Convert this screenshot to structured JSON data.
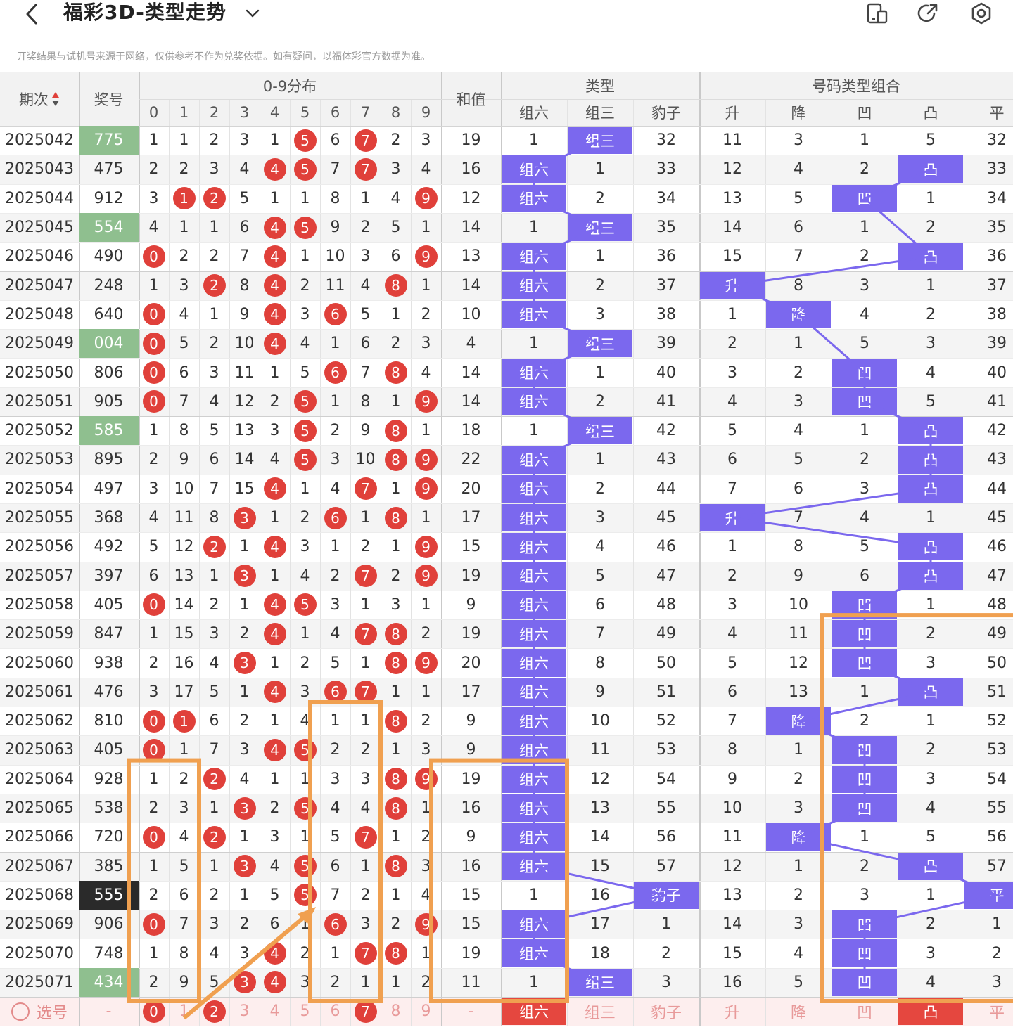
{
  "app": {
    "title": "福彩3D-类型走势",
    "notice": "开奖结果与试机号来源于网络，仅供参考不作为兑奖依据。如有疑问，以福体彩官方数据为准。",
    "icons": [
      "back-icon",
      "chevron-down-icon",
      "device-icon",
      "share-icon",
      "settings-icon"
    ]
  },
  "header": {
    "period": "期次",
    "number": "奖号",
    "dist": "0-9分布",
    "digits": [
      "0",
      "1",
      "2",
      "3",
      "4",
      "5",
      "6",
      "7",
      "8",
      "9"
    ],
    "sum": "和值",
    "type": "类型",
    "type_cols": [
      "组六",
      "组三",
      "豹子"
    ],
    "combo": "号码类型组合",
    "combo_cols": [
      "升",
      "降",
      "凹",
      "凸",
      "平"
    ]
  },
  "colors": {
    "accent": "#7b68ee",
    "ball": "#e0403a",
    "highlight": "#f0a050",
    "win_group3": "#8fbf8f",
    "win_leopard": "#2a2a2a",
    "select_row": "#fdeeee"
  },
  "rows": [
    {
      "p": "2025042",
      "n": "775",
      "nt": "g3",
      "d": [
        "1",
        "1",
        "2",
        "3",
        "1",
        "5",
        "6",
        "7",
        "2",
        "3"
      ],
      "s": "19",
      "t": [
        "1",
        "组三",
        "32"
      ],
      "c": [
        "11",
        "3",
        "1",
        "5",
        "32"
      ]
    },
    {
      "p": "2025043",
      "n": "475",
      "nt": "g6",
      "d": [
        "2",
        "2",
        "3",
        "4",
        "4",
        "5",
        "7",
        "7",
        "3",
        "4"
      ],
      "s": "16",
      "t": [
        "组六",
        "1",
        "33"
      ],
      "c": [
        "12",
        "4",
        "2",
        "凸",
        "33"
      ]
    },
    {
      "p": "2025044",
      "n": "912",
      "nt": "g6",
      "d": [
        "3",
        "1",
        "2",
        "5",
        "1",
        "1",
        "8",
        "1",
        "4",
        "9"
      ],
      "s": "12",
      "t": [
        "组六",
        "2",
        "34"
      ],
      "c": [
        "13",
        "5",
        "凹",
        "1",
        "34"
      ]
    },
    {
      "p": "2025045",
      "n": "554",
      "nt": "g3",
      "d": [
        "4",
        "1",
        "1",
        "6",
        "4",
        "5",
        "9",
        "2",
        "5",
        "1"
      ],
      "s": "14",
      "t": [
        "1",
        "组三",
        "35"
      ],
      "c": [
        "14",
        "6",
        "1",
        "2",
        "35"
      ]
    },
    {
      "p": "2025046",
      "n": "490",
      "nt": "g6",
      "d": [
        "0",
        "2",
        "2",
        "7",
        "4",
        "1",
        "10",
        "3",
        "6",
        "9"
      ],
      "s": "13",
      "t": [
        "组六",
        "1",
        "36"
      ],
      "c": [
        "15",
        "7",
        "2",
        "凸",
        "36"
      ]
    },
    {
      "p": "2025047",
      "n": "248",
      "nt": "g6",
      "d": [
        "1",
        "3",
        "2",
        "8",
        "4",
        "2",
        "11",
        "4",
        "8",
        "1"
      ],
      "s": "14",
      "t": [
        "组六",
        "2",
        "37"
      ],
      "c": [
        "升",
        "8",
        "3",
        "1",
        "37"
      ]
    },
    {
      "p": "2025048",
      "n": "640",
      "nt": "g6",
      "d": [
        "0",
        "4",
        "1",
        "9",
        "4",
        "3",
        "6",
        "5",
        "1",
        "2"
      ],
      "s": "10",
      "t": [
        "组六",
        "3",
        "38"
      ],
      "c": [
        "1",
        "降",
        "4",
        "2",
        "38"
      ]
    },
    {
      "p": "2025049",
      "n": "004",
      "nt": "g3",
      "d": [
        "0",
        "5",
        "2",
        "10",
        "4",
        "4",
        "1",
        "6",
        "2",
        "3"
      ],
      "s": "4",
      "t": [
        "1",
        "组三",
        "39"
      ],
      "c": [
        "2",
        "1",
        "5",
        "3",
        "39"
      ]
    },
    {
      "p": "2025050",
      "n": "806",
      "nt": "g6",
      "d": [
        "0",
        "6",
        "3",
        "11",
        "1",
        "5",
        "6",
        "7",
        "8",
        "4"
      ],
      "s": "14",
      "t": [
        "组六",
        "1",
        "40"
      ],
      "c": [
        "3",
        "2",
        "凹",
        "4",
        "40"
      ]
    },
    {
      "p": "2025051",
      "n": "905",
      "nt": "g6",
      "d": [
        "0",
        "7",
        "4",
        "12",
        "2",
        "5",
        "1",
        "8",
        "1",
        "9"
      ],
      "s": "14",
      "t": [
        "组六",
        "2",
        "41"
      ],
      "c": [
        "4",
        "3",
        "凹",
        "5",
        "41"
      ]
    },
    {
      "p": "2025052",
      "n": "585",
      "nt": "g3",
      "d": [
        "1",
        "8",
        "5",
        "13",
        "3",
        "5",
        "2",
        "9",
        "8",
        "1"
      ],
      "s": "18",
      "t": [
        "1",
        "组三",
        "42"
      ],
      "c": [
        "5",
        "4",
        "1",
        "凸",
        "42"
      ]
    },
    {
      "p": "2025053",
      "n": "895",
      "nt": "g6",
      "d": [
        "2",
        "9",
        "6",
        "14",
        "4",
        "5",
        "3",
        "10",
        "8",
        "9"
      ],
      "s": "22",
      "t": [
        "组六",
        "1",
        "43"
      ],
      "c": [
        "6",
        "5",
        "2",
        "凸",
        "43"
      ]
    },
    {
      "p": "2025054",
      "n": "497",
      "nt": "g6",
      "d": [
        "3",
        "10",
        "7",
        "15",
        "4",
        "1",
        "4",
        "7",
        "1",
        "9"
      ],
      "s": "20",
      "t": [
        "组六",
        "2",
        "44"
      ],
      "c": [
        "7",
        "6",
        "3",
        "凸",
        "44"
      ]
    },
    {
      "p": "2025055",
      "n": "368",
      "nt": "g6",
      "d": [
        "4",
        "11",
        "8",
        "3",
        "1",
        "2",
        "6",
        "1",
        "8",
        "1"
      ],
      "s": "17",
      "t": [
        "组六",
        "3",
        "45"
      ],
      "c": [
        "升",
        "7",
        "4",
        "1",
        "45"
      ]
    },
    {
      "p": "2025056",
      "n": "492",
      "nt": "g6",
      "d": [
        "5",
        "12",
        "2",
        "1",
        "4",
        "3",
        "1",
        "2",
        "1",
        "9"
      ],
      "s": "15",
      "t": [
        "组六",
        "4",
        "46"
      ],
      "c": [
        "1",
        "8",
        "5",
        "凸",
        "46"
      ]
    },
    {
      "p": "2025057",
      "n": "397",
      "nt": "g6",
      "d": [
        "6",
        "13",
        "1",
        "3",
        "1",
        "4",
        "2",
        "7",
        "2",
        "9"
      ],
      "s": "19",
      "t": [
        "组六",
        "5",
        "47"
      ],
      "c": [
        "2",
        "9",
        "6",
        "凸",
        "47"
      ]
    },
    {
      "p": "2025058",
      "n": "405",
      "nt": "g6",
      "d": [
        "0",
        "14",
        "2",
        "1",
        "4",
        "5",
        "3",
        "1",
        "3",
        "1"
      ],
      "s": "9",
      "t": [
        "组六",
        "6",
        "48"
      ],
      "c": [
        "3",
        "10",
        "凹",
        "1",
        "48"
      ]
    },
    {
      "p": "2025059",
      "n": "847",
      "nt": "g6",
      "d": [
        "1",
        "15",
        "3",
        "2",
        "4",
        "1",
        "4",
        "7",
        "8",
        "2"
      ],
      "s": "19",
      "t": [
        "组六",
        "7",
        "49"
      ],
      "c": [
        "4",
        "11",
        "凹",
        "2",
        "49"
      ]
    },
    {
      "p": "2025060",
      "n": "938",
      "nt": "g6",
      "d": [
        "2",
        "16",
        "4",
        "3",
        "1",
        "2",
        "5",
        "1",
        "8",
        "9"
      ],
      "s": "20",
      "t": [
        "组六",
        "8",
        "50"
      ],
      "c": [
        "5",
        "12",
        "凹",
        "3",
        "50"
      ]
    },
    {
      "p": "2025061",
      "n": "476",
      "nt": "g6",
      "d": [
        "3",
        "17",
        "5",
        "1",
        "4",
        "3",
        "6",
        "7",
        "1",
        "1"
      ],
      "s": "17",
      "t": [
        "组六",
        "9",
        "51"
      ],
      "c": [
        "6",
        "13",
        "1",
        "凸",
        "51"
      ]
    },
    {
      "p": "2025062",
      "n": "810",
      "nt": "g6",
      "d": [
        "0",
        "1",
        "6",
        "2",
        "1",
        "4",
        "1",
        "1",
        "8",
        "2"
      ],
      "s": "9",
      "t": [
        "组六",
        "10",
        "52"
      ],
      "c": [
        "7",
        "降",
        "2",
        "1",
        "52"
      ]
    },
    {
      "p": "2025063",
      "n": "405",
      "nt": "g6",
      "d": [
        "0",
        "1",
        "7",
        "3",
        "4",
        "5",
        "2",
        "2",
        "1",
        "3"
      ],
      "s": "9",
      "t": [
        "组六",
        "11",
        "53"
      ],
      "c": [
        "8",
        "1",
        "凹",
        "2",
        "53"
      ]
    },
    {
      "p": "2025064",
      "n": "928",
      "nt": "g6",
      "d": [
        "1",
        "2",
        "2",
        "4",
        "1",
        "1",
        "3",
        "3",
        "8",
        "9"
      ],
      "s": "19",
      "t": [
        "组六",
        "12",
        "54"
      ],
      "c": [
        "9",
        "2",
        "凹",
        "3",
        "54"
      ]
    },
    {
      "p": "2025065",
      "n": "538",
      "nt": "g6",
      "d": [
        "2",
        "3",
        "1",
        "3",
        "2",
        "5",
        "4",
        "4",
        "8",
        "1"
      ],
      "s": "16",
      "t": [
        "组六",
        "13",
        "55"
      ],
      "c": [
        "10",
        "3",
        "凹",
        "4",
        "55"
      ]
    },
    {
      "p": "2025066",
      "n": "720",
      "nt": "g6",
      "d": [
        "0",
        "4",
        "2",
        "1",
        "3",
        "1",
        "5",
        "7",
        "1",
        "2"
      ],
      "s": "9",
      "t": [
        "组六",
        "14",
        "56"
      ],
      "c": [
        "11",
        "降",
        "1",
        "5",
        "56"
      ]
    },
    {
      "p": "2025067",
      "n": "385",
      "nt": "g6",
      "d": [
        "1",
        "5",
        "1",
        "3",
        "4",
        "5",
        "6",
        "1",
        "8",
        "3"
      ],
      "s": "16",
      "t": [
        "组六",
        "15",
        "57"
      ],
      "c": [
        "12",
        "1",
        "2",
        "凸",
        "57"
      ]
    },
    {
      "p": "2025068",
      "n": "555",
      "nt": "bz",
      "d": [
        "2",
        "6",
        "2",
        "1",
        "5",
        "5",
        "7",
        "2",
        "1",
        "4"
      ],
      "s": "15",
      "t": [
        "1",
        "16",
        "豹子"
      ],
      "c": [
        "13",
        "2",
        "3",
        "1",
        "平"
      ]
    },
    {
      "p": "2025069",
      "n": "906",
      "nt": "g6",
      "d": [
        "0",
        "7",
        "3",
        "2",
        "6",
        "1",
        "6",
        "3",
        "2",
        "9"
      ],
      "s": "15",
      "t": [
        "组六",
        "17",
        "1"
      ],
      "c": [
        "14",
        "3",
        "凹",
        "2",
        "1"
      ]
    },
    {
      "p": "2025070",
      "n": "748",
      "nt": "g6",
      "d": [
        "1",
        "8",
        "4",
        "3",
        "4",
        "2",
        "1",
        "7",
        "8",
        "1"
      ],
      "s": "19",
      "t": [
        "组六",
        "18",
        "2"
      ],
      "c": [
        "15",
        "4",
        "凹",
        "3",
        "2"
      ]
    },
    {
      "p": "2025071",
      "n": "434",
      "nt": "g3",
      "d": [
        "2",
        "9",
        "5",
        "3",
        "4",
        "3",
        "2",
        "1",
        "1",
        "2"
      ],
      "s": "11",
      "t": [
        "1",
        "组三",
        "3"
      ],
      "c": [
        "16",
        "5",
        "凹",
        "4",
        "3"
      ]
    }
  ],
  "select_row": {
    "label": "选号",
    "number": "-",
    "digits": [
      "0",
      "1",
      "2",
      "3",
      "4",
      "5",
      "6",
      "7",
      "8",
      "9"
    ],
    "selected_digits": [
      0,
      2,
      7
    ],
    "type": [
      "组六",
      "组三",
      "豹子"
    ],
    "selected_type": 0,
    "combo": [
      "升",
      "降",
      "凹",
      "凸",
      "平"
    ],
    "selected_combo": 3
  }
}
